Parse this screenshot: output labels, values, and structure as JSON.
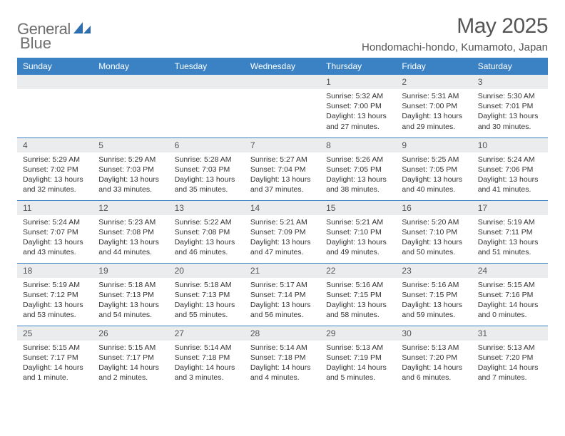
{
  "brand": {
    "text1": "General",
    "text2": "Blue"
  },
  "title": "May 2025",
  "location": "Hondomachi-hondo, Kumamoto, Japan",
  "colors": {
    "header_bg": "#3b82c4",
    "header_fg": "#ffffff",
    "daynum_bg": "#ebeced",
    "border": "#3b82c4",
    "title_color": "#555555",
    "body_text": "#333333",
    "logo_gray": "#6e6e6e",
    "logo_blue": "#2f6fb0"
  },
  "weekdays": [
    "Sunday",
    "Monday",
    "Tuesday",
    "Wednesday",
    "Thursday",
    "Friday",
    "Saturday"
  ],
  "weeks": [
    [
      null,
      null,
      null,
      null,
      {
        "n": "1",
        "sr": "5:32 AM",
        "ss": "7:00 PM",
        "dl": "13 hours and 27 minutes."
      },
      {
        "n": "2",
        "sr": "5:31 AM",
        "ss": "7:00 PM",
        "dl": "13 hours and 29 minutes."
      },
      {
        "n": "3",
        "sr": "5:30 AM",
        "ss": "7:01 PM",
        "dl": "13 hours and 30 minutes."
      }
    ],
    [
      {
        "n": "4",
        "sr": "5:29 AM",
        "ss": "7:02 PM",
        "dl": "13 hours and 32 minutes."
      },
      {
        "n": "5",
        "sr": "5:29 AM",
        "ss": "7:03 PM",
        "dl": "13 hours and 33 minutes."
      },
      {
        "n": "6",
        "sr": "5:28 AM",
        "ss": "7:03 PM",
        "dl": "13 hours and 35 minutes."
      },
      {
        "n": "7",
        "sr": "5:27 AM",
        "ss": "7:04 PM",
        "dl": "13 hours and 37 minutes."
      },
      {
        "n": "8",
        "sr": "5:26 AM",
        "ss": "7:05 PM",
        "dl": "13 hours and 38 minutes."
      },
      {
        "n": "9",
        "sr": "5:25 AM",
        "ss": "7:05 PM",
        "dl": "13 hours and 40 minutes."
      },
      {
        "n": "10",
        "sr": "5:24 AM",
        "ss": "7:06 PM",
        "dl": "13 hours and 41 minutes."
      }
    ],
    [
      {
        "n": "11",
        "sr": "5:24 AM",
        "ss": "7:07 PM",
        "dl": "13 hours and 43 minutes."
      },
      {
        "n": "12",
        "sr": "5:23 AM",
        "ss": "7:08 PM",
        "dl": "13 hours and 44 minutes."
      },
      {
        "n": "13",
        "sr": "5:22 AM",
        "ss": "7:08 PM",
        "dl": "13 hours and 46 minutes."
      },
      {
        "n": "14",
        "sr": "5:21 AM",
        "ss": "7:09 PM",
        "dl": "13 hours and 47 minutes."
      },
      {
        "n": "15",
        "sr": "5:21 AM",
        "ss": "7:10 PM",
        "dl": "13 hours and 49 minutes."
      },
      {
        "n": "16",
        "sr": "5:20 AM",
        "ss": "7:10 PM",
        "dl": "13 hours and 50 minutes."
      },
      {
        "n": "17",
        "sr": "5:19 AM",
        "ss": "7:11 PM",
        "dl": "13 hours and 51 minutes."
      }
    ],
    [
      {
        "n": "18",
        "sr": "5:19 AM",
        "ss": "7:12 PM",
        "dl": "13 hours and 53 minutes."
      },
      {
        "n": "19",
        "sr": "5:18 AM",
        "ss": "7:13 PM",
        "dl": "13 hours and 54 minutes."
      },
      {
        "n": "20",
        "sr": "5:18 AM",
        "ss": "7:13 PM",
        "dl": "13 hours and 55 minutes."
      },
      {
        "n": "21",
        "sr": "5:17 AM",
        "ss": "7:14 PM",
        "dl": "13 hours and 56 minutes."
      },
      {
        "n": "22",
        "sr": "5:16 AM",
        "ss": "7:15 PM",
        "dl": "13 hours and 58 minutes."
      },
      {
        "n": "23",
        "sr": "5:16 AM",
        "ss": "7:15 PM",
        "dl": "13 hours and 59 minutes."
      },
      {
        "n": "24",
        "sr": "5:15 AM",
        "ss": "7:16 PM",
        "dl": "14 hours and 0 minutes."
      }
    ],
    [
      {
        "n": "25",
        "sr": "5:15 AM",
        "ss": "7:17 PM",
        "dl": "14 hours and 1 minute."
      },
      {
        "n": "26",
        "sr": "5:15 AM",
        "ss": "7:17 PM",
        "dl": "14 hours and 2 minutes."
      },
      {
        "n": "27",
        "sr": "5:14 AM",
        "ss": "7:18 PM",
        "dl": "14 hours and 3 minutes."
      },
      {
        "n": "28",
        "sr": "5:14 AM",
        "ss": "7:18 PM",
        "dl": "14 hours and 4 minutes."
      },
      {
        "n": "29",
        "sr": "5:13 AM",
        "ss": "7:19 PM",
        "dl": "14 hours and 5 minutes."
      },
      {
        "n": "30",
        "sr": "5:13 AM",
        "ss": "7:20 PM",
        "dl": "14 hours and 6 minutes."
      },
      {
        "n": "31",
        "sr": "5:13 AM",
        "ss": "7:20 PM",
        "dl": "14 hours and 7 minutes."
      }
    ]
  ],
  "labels": {
    "sunrise": "Sunrise: ",
    "sunset": "Sunset: ",
    "daylight": "Daylight: "
  }
}
